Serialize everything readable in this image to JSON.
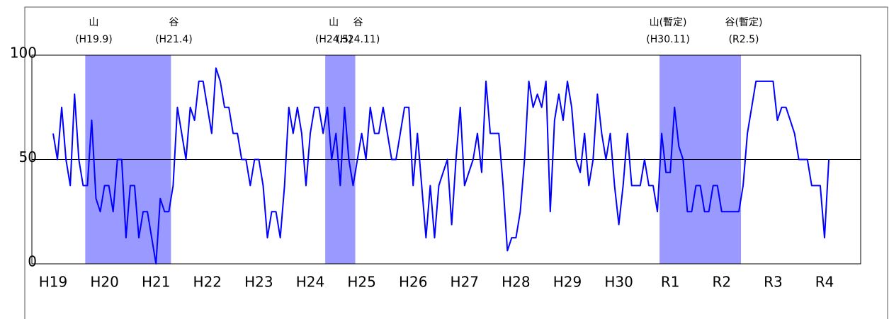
{
  "chart_data": {
    "type": "line",
    "categories": [
      "H19",
      null,
      null,
      null,
      null,
      null,
      null,
      null,
      null,
      null,
      null,
      null,
      "H20",
      null,
      null,
      null,
      null,
      null,
      null,
      null,
      null,
      null,
      null,
      null,
      "H21",
      null,
      null,
      null,
      null,
      null,
      null,
      null,
      null,
      null,
      null,
      null,
      "H22",
      null,
      null,
      null,
      null,
      null,
      null,
      null,
      null,
      null,
      null,
      null,
      "H23",
      null,
      null,
      null,
      null,
      null,
      null,
      null,
      null,
      null,
      null,
      null,
      "H24",
      null,
      null,
      null,
      null,
      null,
      null,
      null,
      null,
      null,
      null,
      null,
      "H25",
      null,
      null,
      null,
      null,
      null,
      null,
      null,
      null,
      null,
      null,
      null,
      "H26",
      null,
      null,
      null,
      null,
      null,
      null,
      null,
      null,
      null,
      null,
      null,
      "H27",
      null,
      null,
      null,
      null,
      null,
      null,
      null,
      null,
      null,
      null,
      null,
      "H28",
      null,
      null,
      null,
      null,
      null,
      null,
      null,
      null,
      null,
      null,
      null,
      "H29",
      null,
      null,
      null,
      null,
      null,
      null,
      null,
      null,
      null,
      null,
      null,
      "H30",
      null,
      null,
      null,
      null,
      null,
      null,
      null,
      null,
      null,
      null,
      null,
      "R1",
      null,
      null,
      null,
      null,
      null,
      null,
      null,
      null,
      null,
      null,
      null,
      "R2",
      null,
      null,
      null,
      null,
      null,
      null,
      null,
      null,
      null,
      null,
      null,
      "R3",
      null,
      null,
      null,
      null,
      null,
      null,
      null,
      null,
      null,
      null,
      null,
      "R4",
      null
    ],
    "values": [
      62.5,
      50,
      75,
      50,
      37.5,
      81.3,
      50,
      37.5,
      37.5,
      68.8,
      31.3,
      25,
      37.5,
      37.5,
      25,
      50,
      50,
      12.5,
      37.5,
      37.5,
      12.5,
      25,
      25,
      12.5,
      0,
      31.3,
      25,
      25,
      37.5,
      75,
      62.5,
      50,
      75,
      68.8,
      87.5,
      87.5,
      75,
      62.5,
      93.8,
      87.5,
      75,
      75,
      62.5,
      62.5,
      50,
      50,
      37.5,
      50,
      50,
      37.5,
      12.5,
      25,
      25,
      12.5,
      37.5,
      75,
      62.5,
      75,
      62.5,
      37.5,
      62.5,
      75,
      75,
      62.5,
      75,
      50,
      62.5,
      37.5,
      75,
      50,
      37.5,
      50,
      62.5,
      50,
      75,
      62.5,
      62.5,
      75,
      62.5,
      50,
      50,
      62.5,
      75,
      75,
      37.5,
      62.5,
      37.5,
      12.5,
      37.5,
      12.5,
      37.5,
      43.8,
      50,
      18.8,
      50,
      75,
      37.5,
      43.8,
      50,
      62.5,
      43.8,
      87.5,
      62.5,
      62.5,
      62.5,
      37.5,
      6.3,
      12.5,
      12.5,
      25,
      50,
      87.5,
      75,
      81.3,
      75,
      87.5,
      25,
      68.8,
      81.3,
      68.8,
      87.5,
      75,
      50,
      43.8,
      62.5,
      37.5,
      50,
      81.3,
      62.5,
      50,
      62.5,
      37.5,
      18.8,
      37.5,
      62.5,
      37.5,
      37.5,
      37.5,
      50,
      37.5,
      37.5,
      25,
      62.5,
      43.8,
      43.8,
      75,
      56.3,
      50,
      25,
      25,
      37.5,
      37.5,
      25,
      25,
      37.5,
      37.5,
      25,
      25,
      25,
      25,
      25,
      37.5,
      62.5,
      75,
      87.5,
      87.5,
      87.5,
      87.5,
      87.5,
      68.8,
      75,
      75,
      68.8,
      62.5,
      50,
      50,
      50,
      37.5,
      37.5,
      37.5,
      12.5,
      50
    ],
    "color": "#0000ff",
    "ylim": [
      0,
      100
    ],
    "yticks": [
      0,
      50,
      100
    ],
    "gridlines": [
      50
    ],
    "shading_color": "#9999ff",
    "shading": [
      {
        "start": 8,
        "end": 27,
        "peak_label": "山",
        "peak_date": "(H19.9)",
        "trough_label": "谷",
        "trough_date": "(H21.4)"
      },
      {
        "start": 64,
        "end": 70,
        "peak_label": "山",
        "peak_date": "(H24.5)",
        "trough_label": "谷",
        "trough_date": "(H24.11)"
      },
      {
        "start": 142,
        "end": 160,
        "peak_label": "山(暫定)",
        "peak_date": "(H30.11)",
        "trough_label": "谷(暫定)",
        "trough_date": "(R2.5)"
      }
    ]
  }
}
